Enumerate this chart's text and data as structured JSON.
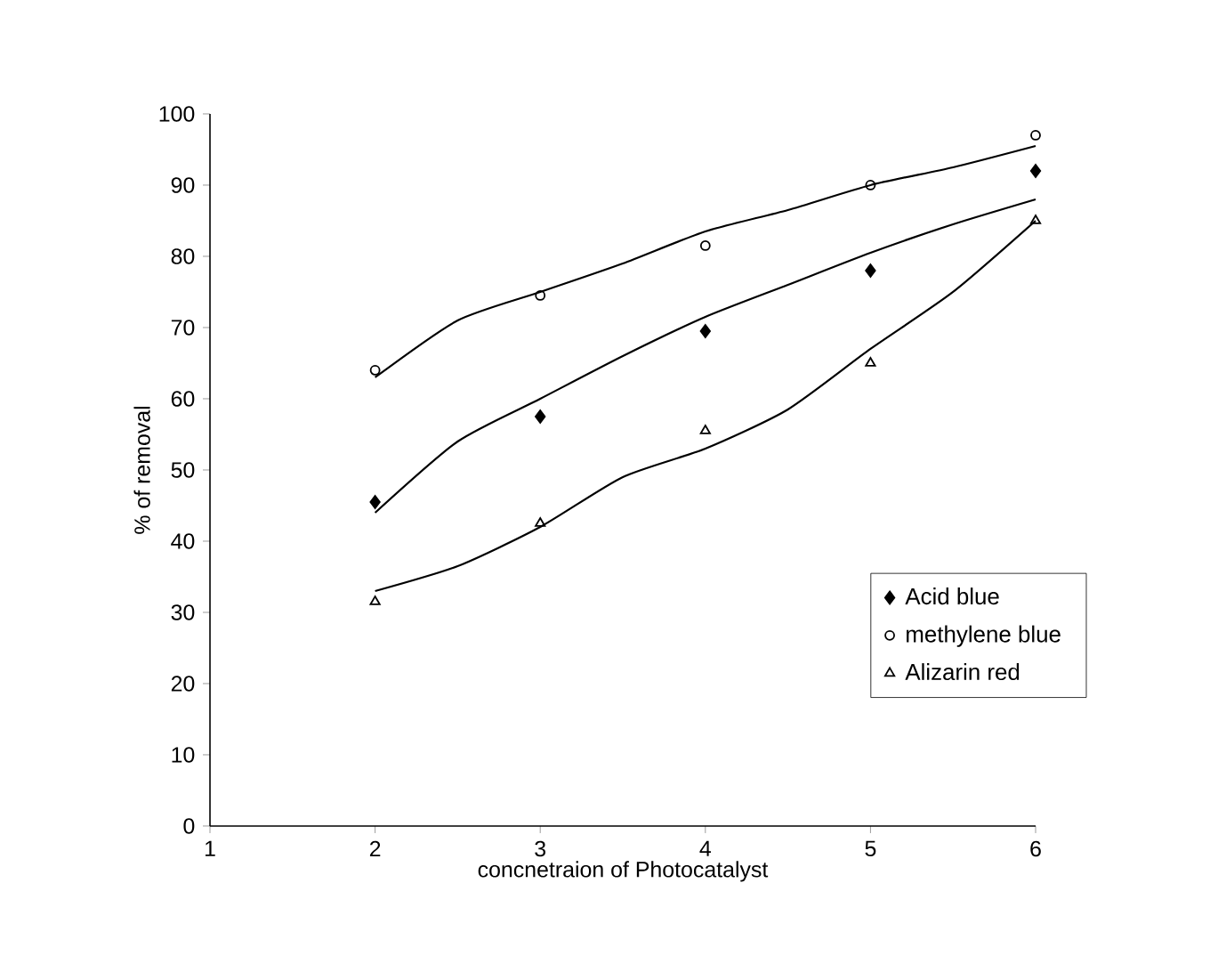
{
  "chart_data": {
    "type": "scatter",
    "xlabel": "concnetraion of Photocatalyst",
    "ylabel": "% of removal",
    "x": [
      2,
      3,
      4,
      5,
      6
    ],
    "xlim": [
      1,
      6
    ],
    "xticks": [
      1,
      2,
      3,
      4,
      5,
      6
    ],
    "ylim": [
      0,
      100
    ],
    "yticks": [
      0,
      10,
      20,
      30,
      40,
      50,
      60,
      70,
      80,
      90,
      100
    ],
    "legend": "right",
    "series": [
      {
        "name": "Acid blue",
        "color": "#000000",
        "marker": "diamond",
        "values": [
          45.5,
          57.5,
          69.5,
          78,
          92
        ]
      },
      {
        "name": "methylene blue",
        "color": "#000000",
        "marker": "circle",
        "values": [
          64,
          74.5,
          81.5,
          90,
          97
        ]
      },
      {
        "name": "Alizarin red",
        "color": "#000000",
        "marker": "triangle",
        "values": [
          31.5,
          42.5,
          55.5,
          65,
          85
        ]
      },
      {
        "type": "line",
        "color": "#000000",
        "marker": "none",
        "x": [
          2,
          2.5,
          3,
          3.5,
          4,
          4.5,
          5,
          5.5,
          6
        ],
        "values": [
          44,
          54,
          60,
          66,
          71.5,
          76,
          80.5,
          84.5,
          88
        ]
      },
      {
        "type": "line",
        "color": "#000000",
        "marker": "none",
        "x": [
          2,
          2.5,
          3,
          3.5,
          4,
          4.5,
          5,
          5.5,
          6
        ],
        "values": [
          63,
          71,
          75,
          79,
          83.5,
          86.5,
          90,
          92.5,
          95.5
        ]
      },
      {
        "type": "line",
        "color": "#000000",
        "marker": "none",
        "x": [
          2,
          2.5,
          3,
          3.5,
          4,
          4.5,
          5,
          5.5,
          6
        ],
        "values": [
          33,
          36.5,
          42,
          49,
          53,
          58.5,
          67,
          75,
          85
        ]
      }
    ]
  }
}
